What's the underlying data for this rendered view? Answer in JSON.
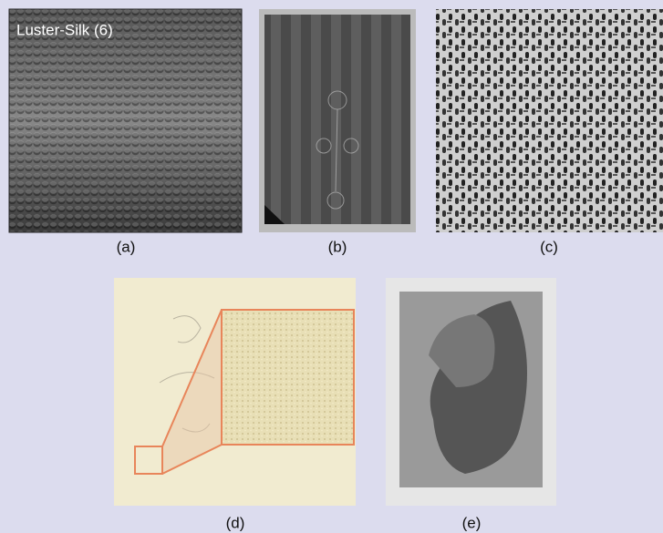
{
  "overlay_text": "Luster-Silk (6)",
  "labels": [
    "(a)",
    "(b)",
    "(c)",
    "(d)",
    "(e)"
  ]
}
